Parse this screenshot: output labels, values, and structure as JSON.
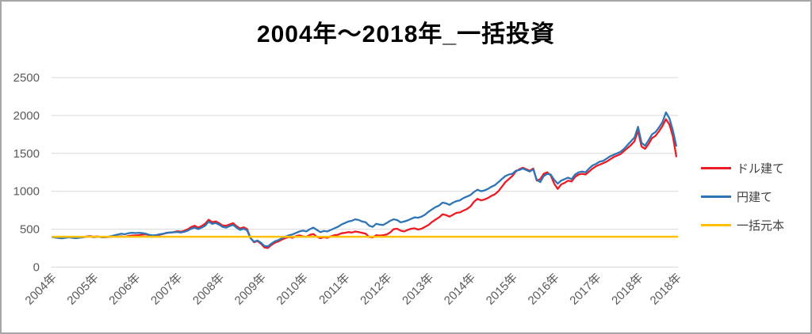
{
  "title": "2004年～2018年_一括投資",
  "colors": {
    "usd_line": "#ED1C24",
    "jpy_line": "#2E75B6",
    "principal_line": "#FFC000",
    "gridline": "#D9D9D9",
    "tick_label": "#595959",
    "legend_text": "#404040",
    "frame_border": "#A6A6A6",
    "title_text": "#000000"
  },
  "chart_data": {
    "type": "line",
    "title": "2004年～2018年_一括投資",
    "x_unit": "month",
    "x_range": [
      "2004-01",
      "2018-12"
    ],
    "ylim": [
      0,
      2500
    ],
    "y_ticks": [
      0,
      500,
      1000,
      1500,
      2000,
      2500
    ],
    "grid": "horizontal",
    "legend_position": "right",
    "x_tick_labels": [
      "2004年",
      "2005年",
      "2006年",
      "2007年",
      "2008年",
      "2009年",
      "2010年",
      "2011年",
      "2012年",
      "2013年",
      "2014年",
      "2015年",
      "2016年",
      "2017年",
      "2018年",
      "2018年"
    ],
    "x_tick_month_index": [
      0,
      12,
      24,
      36,
      48,
      60,
      72,
      84,
      96,
      108,
      120,
      132,
      144,
      156,
      168,
      179
    ],
    "series": [
      {
        "name": "ドル建て",
        "color": "#ED1C24",
        "values": [
          400,
          394,
          388,
          383,
          390,
          396,
          388,
          384,
          391,
          397,
          404,
          409,
          401,
          406,
          398,
          392,
          397,
          399,
          406,
          402,
          407,
          399,
          411,
          416,
          419,
          422,
          428,
          433,
          420,
          413,
          417,
          427,
          438,
          450,
          456,
          461,
          473,
          467,
          479,
          499,
          529,
          546,
          521,
          543,
          573,
          625,
          593,
          603,
          579,
          549,
          546,
          563,
          579,
          541,
          509,
          525,
          503,
          386,
          329,
          343,
          309,
          259,
          253,
          293,
          323,
          339,
          363,
          383,
          397,
          387,
          409,
          419,
          406,
          399,
          426,
          436,
          401,
          381,
          396,
          386,
          406,
          421,
          426,
          446,
          452,
          462,
          456,
          470,
          461,
          451,
          441,
          397,
          391,
          421,
          416,
          421,
          431,
          456,
          501,
          506,
          481,
          471,
          491,
          506,
          511,
          496,
          506,
          531,
          556,
          596,
          626,
          656,
          696,
          686,
          666,
          691,
          716,
          721,
          746,
          766,
          801,
          861,
          901,
          881,
          891,
          911,
          941,
          961,
          1001,
          1061,
          1121,
          1161,
          1201,
          1261,
          1291,
          1311,
          1291,
          1271,
          1301,
          1141,
          1161,
          1231,
          1251,
          1211,
          1101,
          1031,
          1091,
          1111,
          1141,
          1131,
          1191,
          1221,
          1231,
          1221,
          1261,
          1301,
          1331,
          1351,
          1371,
          1391,
          1421,
          1451,
          1471,
          1491,
          1531,
          1571,
          1611,
          1661,
          1801,
          1591,
          1561,
          1621,
          1701,
          1731,
          1791,
          1861,
          1951,
          1881,
          1721,
          1451
        ]
      },
      {
        "name": "円建て",
        "color": "#2E75B6",
        "values": [
          398,
          390,
          384,
          380,
          386,
          392,
          386,
          381,
          387,
          394,
          400,
          404,
          394,
          400,
          397,
          393,
          401,
          407,
          419,
          429,
          441,
          433,
          447,
          453,
          449,
          453,
          449,
          441,
          426,
          419,
          423,
          433,
          441,
          453,
          457,
          459,
          463,
          456,
          466,
          481,
          506,
          521,
          501,
          521,
          546,
          600,
          571,
          581,
          561,
          531,
          521,
          541,
          557,
          521,
          491,
          506,
          486,
          381,
          336,
          351,
          321,
          279,
          273,
          311,
          341,
          357,
          381,
          401,
          421,
          431,
          451,
          471,
          481,
          471,
          501,
          521,
          491,
          461,
          476,
          471,
          491,
          511,
          531,
          561,
          581,
          601,
          611,
          631,
          621,
          601,
          591,
          546,
          531,
          571,
          561,
          556,
          581,
          611,
          631,
          621,
          591,
          601,
          616,
          636,
          656,
          651,
          666,
          691,
          731,
          761,
          791,
          811,
          851,
          841,
          821,
          851,
          871,
          881,
          911,
          931,
          951,
          991,
          1021,
          1001,
          1011,
          1031,
          1061,
          1081,
          1121,
          1161,
          1201,
          1221,
          1231,
          1271,
          1281,
          1301,
          1281,
          1261,
          1291,
          1151,
          1121,
          1201,
          1231,
          1221,
          1151,
          1101,
          1141,
          1161,
          1181,
          1161,
          1221,
          1251,
          1261,
          1251,
          1301,
          1341,
          1361,
          1391,
          1401,
          1431,
          1461,
          1481,
          1501,
          1521,
          1561,
          1611,
          1661,
          1711,
          1851,
          1641,
          1601,
          1671,
          1751,
          1781,
          1841,
          1911,
          2041,
          1961,
          1801,
          1591
        ]
      },
      {
        "name": "一括元本",
        "color": "#FFC000",
        "constant": 400
      }
    ]
  },
  "legend": {
    "items": [
      {
        "label": "ドル建て"
      },
      {
        "label": "円建て"
      },
      {
        "label": "一括元本"
      }
    ]
  }
}
